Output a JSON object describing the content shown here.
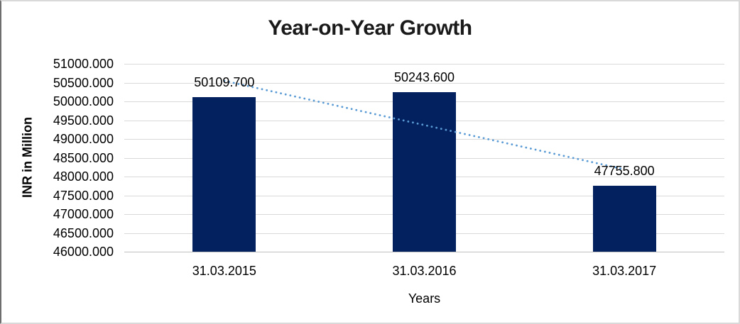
{
  "chart_data": {
    "type": "bar",
    "title": "Year-on-Year Growth",
    "xlabel": "Years",
    "ylabel": "INR in Million",
    "categories": [
      "31.03.2015",
      "31.03.2016",
      "31.03.2017"
    ],
    "values": [
      50109.7,
      50243.6,
      47755.8
    ],
    "data_labels": [
      "50109.700",
      "50243.600",
      "47755.800"
    ],
    "ylim": [
      46000,
      51000
    ],
    "ytick_step": 500,
    "ytick_labels": [
      "51000.000",
      "50500.000",
      "50000.000",
      "49500.000",
      "49000.000",
      "48500.000",
      "48000.000",
      "47500.000",
      "47000.000",
      "46500.000",
      "46000.000"
    ],
    "grid": true,
    "legend_position": "none",
    "bar_color": "#02215E",
    "gridline_color": "#D9D9D9",
    "axis_line_color": "#BFBFBF",
    "title_color": "#1A1A1A",
    "text_color": "#000000",
    "trendline": {
      "type": "linear",
      "style": "dotted",
      "color": "#5B9BD5"
    }
  }
}
